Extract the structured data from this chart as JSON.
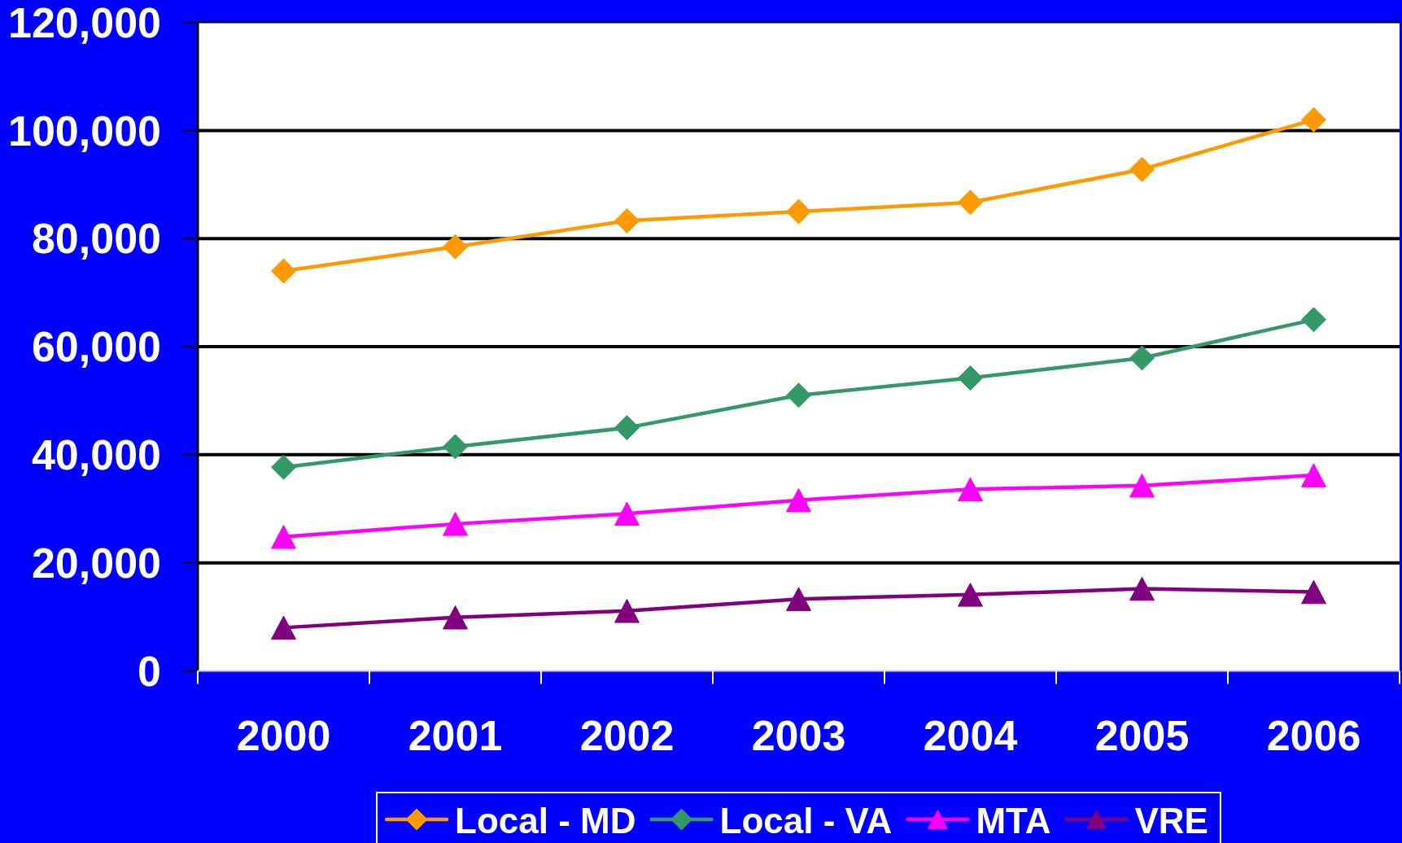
{
  "chart_data": {
    "type": "line",
    "categories": [
      "2000",
      "2001",
      "2002",
      "2003",
      "2004",
      "2005",
      "2006"
    ],
    "series": [
      {
        "name": "Local - MD",
        "color": "#ff9900",
        "marker": "diamond",
        "values": [
          74000,
          78500,
          83300,
          85000,
          86700,
          92800,
          102000
        ]
      },
      {
        "name": "Local - VA",
        "color": "#339966",
        "marker": "diamond",
        "values": [
          37700,
          41500,
          45000,
          51000,
          54200,
          57900,
          65000
        ]
      },
      {
        "name": "MTA",
        "color": "#ff00ff",
        "marker": "triangle",
        "values": [
          24800,
          27200,
          29100,
          31600,
          33600,
          34300,
          36200
        ]
      },
      {
        "name": "VRE",
        "color": "#800080",
        "marker": "triangle",
        "values": [
          8000,
          9900,
          11100,
          13300,
          14100,
          15200,
          14600
        ]
      }
    ],
    "ylim": [
      0,
      120000
    ],
    "yticks": [
      0,
      {
        "value": 20000,
        "label": "20,000"
      },
      {
        "value": 40000,
        "label": "40,000"
      },
      {
        "value": 60000,
        "label": "60,000"
      },
      {
        "value": 80000,
        "label": "80,000"
      },
      {
        "value": 100000,
        "label": "100,000"
      },
      {
        "value": 120000,
        "label": "120,000"
      }
    ],
    "grid": "y",
    "legend": "bottom"
  }
}
